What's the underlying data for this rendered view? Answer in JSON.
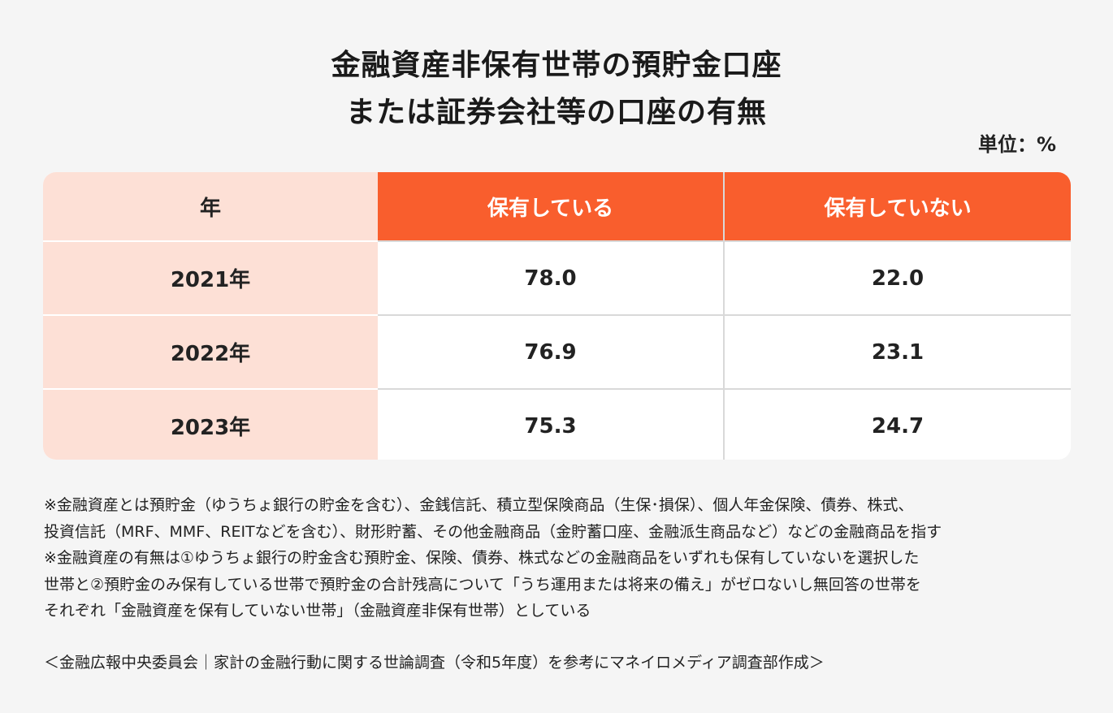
{
  "chart_data": {
    "type": "table",
    "title_lines": [
      "金融資産非保有世帯の預貯金口座",
      "または証券会社等の口座の有無"
    ],
    "unit": "単位：%",
    "columns": [
      "年",
      "保有している",
      "保有していない"
    ],
    "rows": [
      {
        "year": "2021年",
        "has": "78.0",
        "has_not": "22.0"
      },
      {
        "year": "2022年",
        "has": "76.9",
        "has_not": "23.1"
      },
      {
        "year": "2023年",
        "has": "75.3",
        "has_not": "24.7"
      }
    ]
  },
  "notes": [
    "※金融資産とは預貯金（ゆうちょ銀行の貯金を含む）、金銭信託、積立型保険商品（生保･損保）、個人年金保険、債券、株式、",
    "投資信託（MRF、MMF、REITなどを含む）、財形貯蓄、その他金融商品（金貯蓄口座、金融派生商品など）などの金融商品を指す",
    "※金融資産の有無は①ゆうちょ銀行の貯金含む預貯金、保険、債券、株式などの金融商品をいずれも保有していないを選択した",
    "世帯と②預貯金のみ保有している世帯で預貯金の合計残高について「うち運用または将来の備え」がゼロないし無回答の世帯を",
    "それぞれ「金融資産を保有していない世帯」（金融資産非保有世帯）としている"
  ],
  "source": "＜金融広報中央委員会｜家計の金融行動に関する世論調査（令和5年度）を参考にマネイロメディア調査部作成＞",
  "colors": {
    "accent": "#f95e2d",
    "year_bg": "#fde0d6",
    "background": "#f5f5f5"
  }
}
